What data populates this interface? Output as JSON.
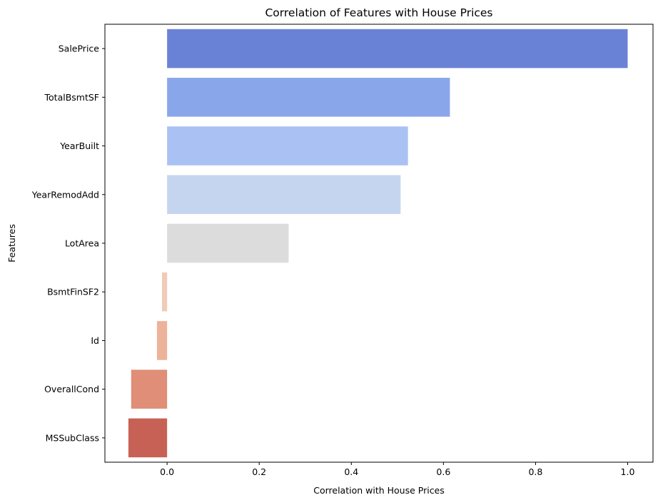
{
  "chart_data": {
    "type": "bar",
    "orientation": "horizontal",
    "title": "Correlation of Features with House Prices",
    "xlabel": "Correlation with House Prices",
    "ylabel": "Features",
    "categories": [
      "SalePrice",
      "TotalBsmtSF",
      "YearBuilt",
      "YearRemodAdd",
      "LotArea",
      "BsmtFinSF2",
      "Id",
      "OverallCond",
      "MSSubClass"
    ],
    "values": [
      1.0,
      0.614,
      0.523,
      0.507,
      0.264,
      -0.011,
      -0.022,
      -0.078,
      -0.084
    ],
    "colors": [
      "#6a82d5",
      "#8aa6ea",
      "#aac2f3",
      "#c6d5ef",
      "#dcdcdc",
      "#f0cbb7",
      "#ecb39a",
      "#e08e77",
      "#c86155"
    ],
    "xlim": [
      -0.135,
      1.055
    ],
    "xticks": [
      0.0,
      0.2,
      0.4,
      0.6,
      0.8,
      1.0
    ],
    "xtick_labels": [
      "0.0",
      "0.2",
      "0.4",
      "0.6",
      "0.8",
      "1.0"
    ],
    "grid": false,
    "legend": "none"
  }
}
